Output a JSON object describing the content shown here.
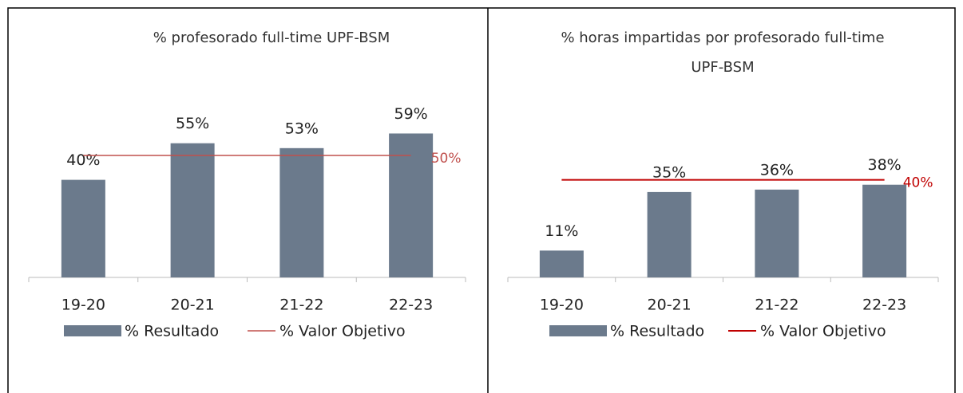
{
  "chart_data": [
    {
      "type": "bar",
      "title": "% profesorado full-time UPF-BSM",
      "categories": [
        "19-20",
        "20-21",
        "21-22",
        "22-23"
      ],
      "series": [
        {
          "name": "% Resultado",
          "type": "bar",
          "color": "#6b7a8c",
          "values": [
            40,
            55,
            53,
            59
          ],
          "value_labels": [
            "40%",
            "55%",
            "53%",
            "59%"
          ]
        },
        {
          "name": "% Valor Objetivo",
          "type": "line",
          "color": "#c0504d",
          "values": [
            50,
            50,
            50,
            50
          ],
          "label": "50%"
        }
      ]
    },
    {
      "type": "bar",
      "title": "% horas impartidas por profesorado full-time UPF-BSM",
      "categories": [
        "19-20",
        "20-21",
        "21-22",
        "22-23"
      ],
      "series": [
        {
          "name": "% Resultado",
          "type": "bar",
          "color": "#6b7a8c",
          "values": [
            11,
            35,
            36,
            38
          ],
          "value_labels": [
            "11%",
            "35%",
            "36%",
            "38%"
          ]
        },
        {
          "name": "% Valor Objetivo",
          "type": "line",
          "color": "#c00000",
          "values": [
            40,
            40,
            40,
            40
          ],
          "label": "40%"
        }
      ]
    }
  ]
}
